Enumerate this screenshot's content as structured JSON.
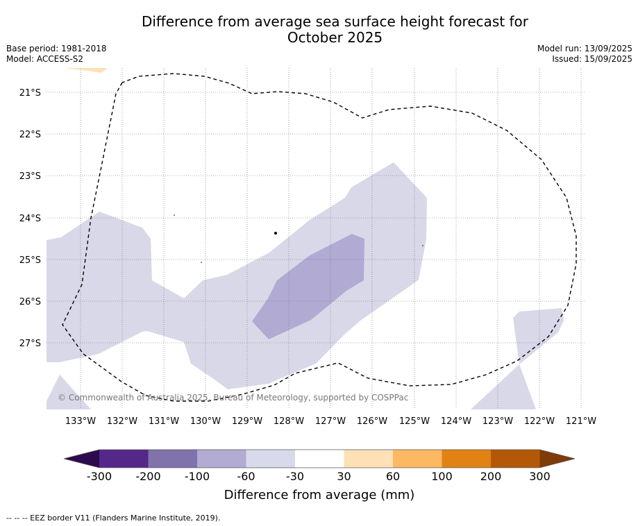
{
  "header": {
    "title_line1": "Difference from average sea surface height forecast for",
    "title_line2": "October 2025",
    "base_period": "Base period: 1981-2018",
    "model": "Model: ACCESS-S2",
    "model_run": "Model run: 13/09/2025",
    "issued": "Issued: 15/09/2025"
  },
  "map": {
    "latitude_labels": [
      "21°S",
      "22°S",
      "23°S",
      "24°S",
      "25°S",
      "26°S",
      "27°S"
    ],
    "longitude_labels": [
      "133°W",
      "132°W",
      "131°W",
      "130°W",
      "129°W",
      "128°W",
      "127°W",
      "126°W",
      "125°W",
      "124°W",
      "123°W",
      "122°W",
      "121°W"
    ],
    "copyright": "© Commonwealth of Australia 2025, Bureau of Meteorology, supported by COSPPac",
    "ocean_color": "#ffffff",
    "anomaly_regions": [
      {
        "category": "-30 to -60",
        "color": "#d8d8e8"
      },
      {
        "category": "-60 to -100",
        "color": "#b1aad3"
      },
      {
        "category": "30 to 60",
        "color": "#fee0b6"
      }
    ]
  },
  "colorbar": {
    "title": "Difference from average (mm)",
    "tick_labels": [
      "-300",
      "-200",
      "-100",
      "-60",
      "-30",
      "30",
      "60",
      "100",
      "200",
      "300"
    ],
    "colors": [
      "#2d0a4e",
      "#542788",
      "#8073ac",
      "#b2abd2",
      "#d8daeb",
      "#ffffff",
      "#fee0b6",
      "#fdb863",
      "#e08214",
      "#b35806",
      "#7f3b08"
    ]
  },
  "footnote": {
    "text": "-- -- -- EEZ border V11 (Flanders Marine Institute, 2019)."
  }
}
